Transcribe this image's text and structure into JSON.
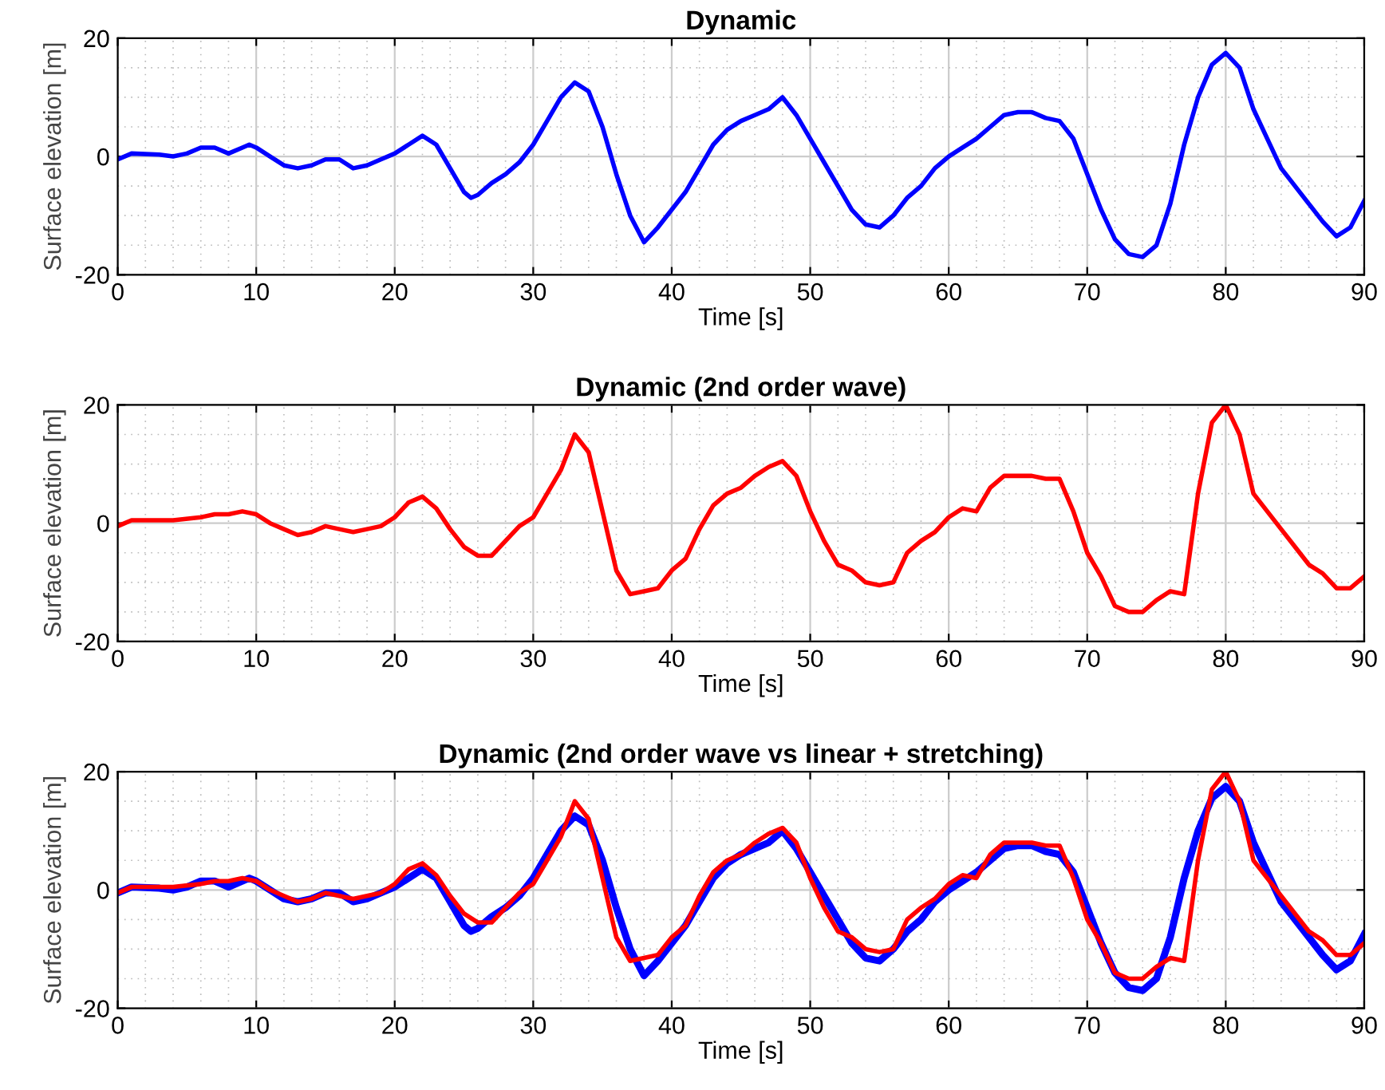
{
  "chart_data": [
    {
      "type": "line",
      "title": "Dynamic",
      "xlabel": "Time [s]",
      "ylabel": "Surface elevation [m]",
      "xlim": [
        0,
        90
      ],
      "ylim": [
        -20,
        20
      ],
      "xticks": [
        0,
        10,
        20,
        30,
        40,
        50,
        60,
        70,
        80,
        90
      ],
      "yticks": [
        -20,
        0,
        20
      ],
      "grid": true,
      "legend": false,
      "x": [
        0,
        1,
        3,
        4,
        5,
        6,
        7,
        8,
        9,
        9.5,
        10,
        11,
        12,
        13,
        14,
        15,
        16,
        17,
        18,
        19,
        20,
        21,
        22,
        23,
        24,
        25,
        25.5,
        26,
        27,
        28,
        29,
        30,
        31,
        32,
        33,
        34,
        35,
        36,
        37,
        38,
        39,
        40,
        41,
        42,
        43,
        44,
        45,
        46,
        47,
        48,
        49,
        50,
        51,
        52,
        53,
        54,
        55,
        56,
        57,
        58,
        59,
        60,
        61,
        62,
        63,
        64,
        65,
        66,
        67,
        68,
        69,
        70,
        71,
        72,
        73,
        74,
        75,
        76,
        77,
        78,
        79,
        80,
        81,
        82,
        83,
        84,
        85,
        86,
        87,
        88,
        89,
        90
      ],
      "series": [
        {
          "color": "#0000ff",
          "values": [
            -0.5,
            0.5,
            0.3,
            0,
            0.5,
            1.5,
            1.5,
            0.5,
            1.5,
            2,
            1.5,
            0,
            -1.5,
            -2,
            -1.5,
            -0.5,
            -0.5,
            -2,
            -1.5,
            -0.5,
            0.5,
            2,
            3.5,
            2,
            -2,
            -6,
            -7,
            -6.5,
            -4.5,
            -3,
            -1,
            2,
            6,
            10,
            12.5,
            11,
            5,
            -3,
            -10,
            -14.5,
            -12,
            -9,
            -6,
            -2,
            2,
            4.5,
            6,
            7,
            8,
            10,
            7,
            3,
            -1,
            -5,
            -9,
            -11.5,
            -12,
            -10,
            -7,
            -5,
            -2,
            0,
            1.5,
            3,
            5,
            7,
            7.5,
            7.5,
            6.5,
            6,
            3,
            -3,
            -9,
            -14,
            -16.5,
            -17,
            -15,
            -8,
            2,
            10,
            15.5,
            17.5,
            15,
            8,
            3,
            -2,
            -5,
            -8,
            -11,
            -13.5,
            -12,
            -7.5
          ]
        }
      ]
    },
    {
      "type": "line",
      "title": "Dynamic (2nd order wave)",
      "xlabel": "Time [s]",
      "ylabel": "Surface elevation [m]",
      "xlim": [
        0,
        90
      ],
      "ylim": [
        -20,
        20
      ],
      "xticks": [
        0,
        10,
        20,
        30,
        40,
        50,
        60,
        70,
        80,
        90
      ],
      "yticks": [
        -20,
        0,
        20
      ],
      "grid": true,
      "legend": false,
      "x": [
        0,
        1,
        2,
        4,
        6,
        7,
        8,
        9,
        10,
        11,
        12,
        13,
        14,
        15,
        16,
        17,
        18,
        19,
        20,
        21,
        22,
        23,
        24,
        25,
        26,
        27,
        28,
        29,
        30,
        31,
        32,
        33,
        34,
        35,
        36,
        37,
        38,
        39,
        40,
        41,
        42,
        43,
        44,
        45,
        46,
        47,
        48,
        49,
        50,
        51,
        52,
        53,
        54,
        55,
        56,
        57,
        58,
        59,
        60,
        61,
        62,
        63,
        64,
        65,
        66,
        67,
        68,
        69,
        70,
        71,
        72,
        73,
        74,
        75,
        76,
        77,
        78,
        79,
        80,
        81,
        82,
        83,
        84,
        85,
        86,
        87,
        88,
        89,
        90
      ],
      "series": [
        {
          "color": "#ff0000",
          "values": [
            -0.5,
            0.5,
            0.5,
            0.5,
            1,
            1.5,
            1.5,
            2,
            1.5,
            0,
            -1,
            -2,
            -1.5,
            -0.5,
            -1,
            -1.5,
            -1,
            -0.5,
            1,
            3.5,
            4.5,
            2.5,
            -1,
            -4,
            -5.5,
            -5.5,
            -3,
            -0.5,
            1,
            5,
            9,
            15,
            12,
            2,
            -8,
            -12,
            -11.5,
            -11,
            -8,
            -6,
            -1,
            3,
            5,
            6,
            8,
            9.5,
            10.5,
            8,
            2,
            -3,
            -7,
            -8,
            -10,
            -10.5,
            -10,
            -5,
            -3,
            -1.5,
            1,
            2.5,
            2,
            6,
            8,
            8,
            8,
            7.5,
            7.5,
            2,
            -5,
            -9,
            -14,
            -15,
            -15,
            -13,
            -11.5,
            -12,
            5,
            17,
            20,
            15,
            5,
            2,
            -1,
            -4,
            -7,
            -8.5,
            -11,
            -11,
            -9
          ]
        }
      ]
    },
    {
      "type": "line",
      "title": "Dynamic (2nd order wave vs linear + stretching)",
      "xlabel": "Time [s]",
      "ylabel": "Surface elevation [m]",
      "xlim": [
        0,
        90
      ],
      "ylim": [
        -20,
        20
      ],
      "xticks": [
        0,
        10,
        20,
        30,
        40,
        50,
        60,
        70,
        80,
        90
      ],
      "yticks": [
        -20,
        0,
        20
      ],
      "grid": true,
      "legend": false,
      "series": [
        {
          "color": "#0000ff",
          "x": [
            0,
            1,
            3,
            4,
            5,
            6,
            7,
            8,
            9,
            9.5,
            10,
            11,
            12,
            13,
            14,
            15,
            16,
            17,
            18,
            19,
            20,
            21,
            22,
            23,
            24,
            25,
            25.5,
            26,
            27,
            28,
            29,
            30,
            31,
            32,
            33,
            34,
            35,
            36,
            37,
            38,
            39,
            40,
            41,
            42,
            43,
            44,
            45,
            46,
            47,
            48,
            49,
            50,
            51,
            52,
            53,
            54,
            55,
            56,
            57,
            58,
            59,
            60,
            61,
            62,
            63,
            64,
            65,
            66,
            67,
            68,
            69,
            70,
            71,
            72,
            73,
            74,
            75,
            76,
            77,
            78,
            79,
            80,
            81,
            82,
            83,
            84,
            85,
            86,
            87,
            88,
            89,
            90
          ],
          "values": [
            -0.5,
            0.5,
            0.3,
            0,
            0.5,
            1.5,
            1.5,
            0.5,
            1.5,
            2,
            1.5,
            0,
            -1.5,
            -2,
            -1.5,
            -0.5,
            -0.5,
            -2,
            -1.5,
            -0.5,
            0.5,
            2,
            3.5,
            2,
            -2,
            -6,
            -7,
            -6.5,
            -4.5,
            -3,
            -1,
            2,
            6,
            10,
            12.5,
            11,
            5,
            -3,
            -10,
            -14.5,
            -12,
            -9,
            -6,
            -2,
            2,
            4.5,
            6,
            7,
            8,
            10,
            7,
            3,
            -1,
            -5,
            -9,
            -11.5,
            -12,
            -10,
            -7,
            -5,
            -2,
            0,
            1.5,
            3,
            5,
            7,
            7.5,
            7.5,
            6.5,
            6,
            3,
            -3,
            -9,
            -14,
            -16.5,
            -17,
            -15,
            -8,
            2,
            10,
            15.5,
            17.5,
            15,
            8,
            3,
            -2,
            -5,
            -8,
            -11,
            -13.5,
            -12,
            -7.5
          ]
        },
        {
          "color": "#ff0000",
          "x": [
            0,
            1,
            2,
            4,
            6,
            7,
            8,
            9,
            10,
            11,
            12,
            13,
            14,
            15,
            16,
            17,
            18,
            19,
            20,
            21,
            22,
            23,
            24,
            25,
            26,
            27,
            28,
            29,
            30,
            31,
            32,
            33,
            34,
            35,
            36,
            37,
            38,
            39,
            40,
            41,
            42,
            43,
            44,
            45,
            46,
            47,
            48,
            49,
            50,
            51,
            52,
            53,
            54,
            55,
            56,
            57,
            58,
            59,
            60,
            61,
            62,
            63,
            64,
            65,
            66,
            67,
            68,
            69,
            70,
            71,
            72,
            73,
            74,
            75,
            76,
            77,
            78,
            79,
            80,
            81,
            82,
            83,
            84,
            85,
            86,
            87,
            88,
            89,
            90
          ],
          "values": [
            -0.5,
            0.5,
            0.5,
            0.5,
            1,
            1.5,
            1.5,
            2,
            1.5,
            0,
            -1,
            -2,
            -1.5,
            -0.5,
            -1,
            -1.5,
            -1,
            -0.5,
            1,
            3.5,
            4.5,
            2.5,
            -1,
            -4,
            -5.5,
            -5.5,
            -3,
            -0.5,
            1,
            5,
            9,
            15,
            12,
            2,
            -8,
            -12,
            -11.5,
            -11,
            -8,
            -6,
            -1,
            3,
            5,
            6,
            8,
            9.5,
            10.5,
            8,
            2,
            -3,
            -7,
            -8,
            -10,
            -10.5,
            -10,
            -5,
            -3,
            -1.5,
            1,
            2.5,
            2,
            6,
            8,
            8,
            8,
            7.5,
            7.5,
            2,
            -5,
            -9,
            -14,
            -15,
            -15,
            -13,
            -11.5,
            -12,
            5,
            17,
            20,
            15,
            5,
            2,
            -1,
            -4,
            -7,
            -8.5,
            -11,
            -11,
            -9
          ]
        }
      ]
    }
  ]
}
